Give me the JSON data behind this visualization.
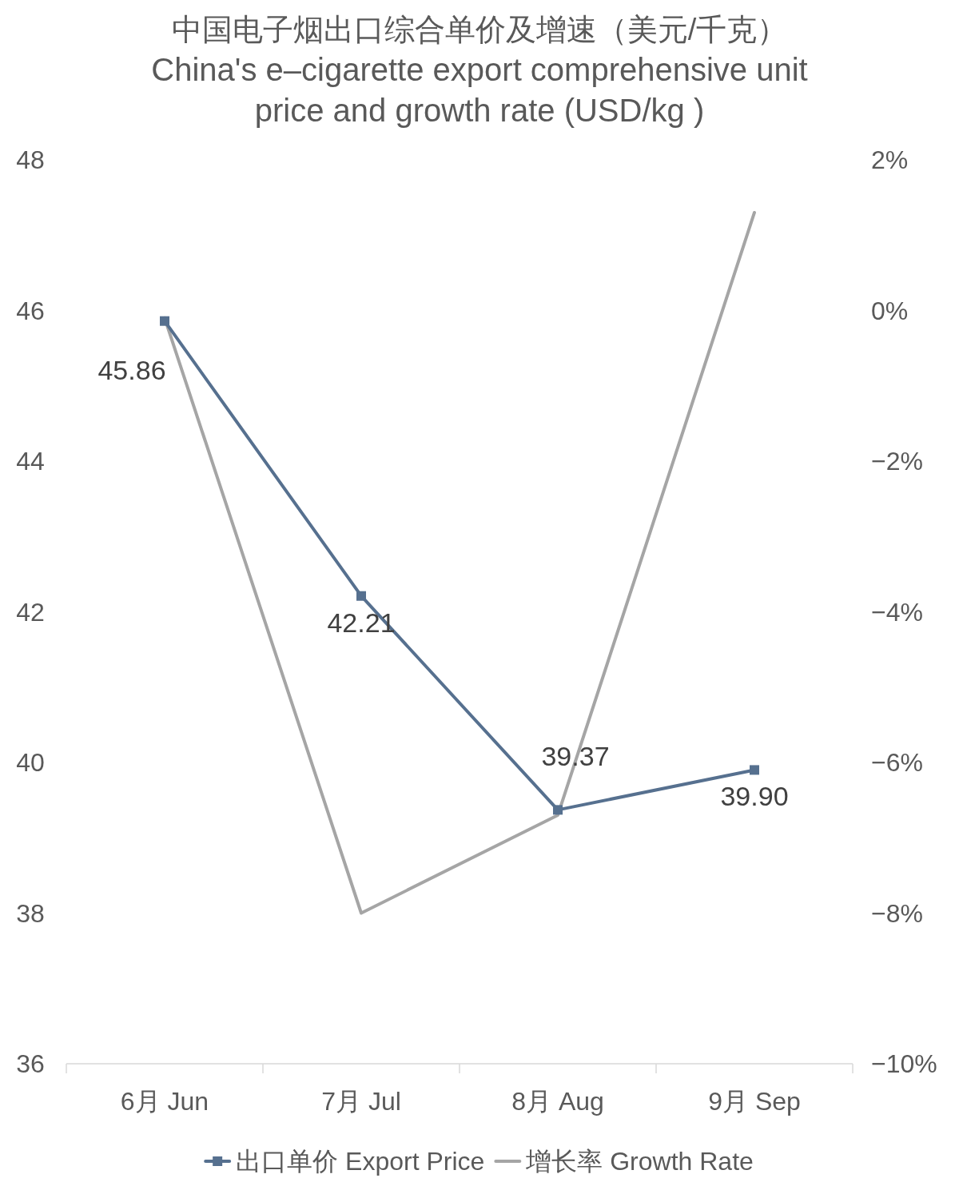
{
  "chart_data": {
    "type": "line",
    "title": "中国电子烟出口综合单价及增速（美元/千克）",
    "subtitle": "China's e–cigarette export comprehensive unit price and growth rate (USD/kg )",
    "categories": [
      "6月 Jun",
      "7月 Jul",
      "8月 Aug",
      "9月 Sep"
    ],
    "series": [
      {
        "name": "出口单价 Export Price",
        "color": "#56708f",
        "values": [
          45.86,
          42.21,
          39.37,
          39.9
        ],
        "marker": "square",
        "value_labels": [
          "45.86",
          "42.21",
          "39.37",
          "39.90"
        ]
      },
      {
        "name": "增长率 Growth Rate",
        "color": "#a5a5a5",
        "values": [
          -0.1,
          -8.0,
          -6.7,
          1.3
        ],
        "axis": "y2",
        "marker": "none"
      }
    ],
    "ylim": [
      36,
      48
    ],
    "yticks": [
      36,
      38,
      40,
      42,
      44,
      46,
      48
    ],
    "y2lim": [
      -10,
      2
    ],
    "y2ticks": [
      {
        "value": -10,
        "label": "−10%"
      },
      {
        "value": -8,
        "label": "−8%"
      },
      {
        "value": -6,
        "label": "−6%"
      },
      {
        "value": -4,
        "label": "−4%"
      },
      {
        "value": -2,
        "label": "−2%"
      },
      {
        "value": 0,
        "label": "0%"
      },
      {
        "value": 2,
        "label": "2%"
      }
    ],
    "legend": "bottom"
  }
}
